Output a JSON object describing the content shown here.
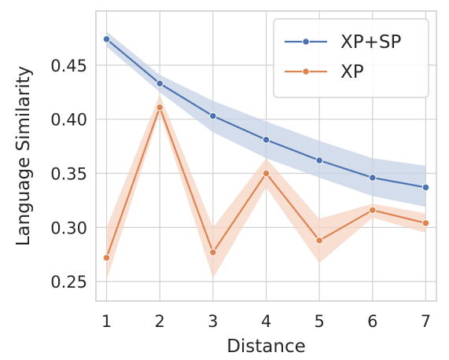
{
  "chart_data": {
    "type": "line",
    "xlabel": "Distance",
    "ylabel": "Language Similarity",
    "x": [
      1,
      2,
      3,
      4,
      5,
      6,
      7
    ],
    "xlim": [
      0.8,
      7.2
    ],
    "ylim": [
      0.232,
      0.5
    ],
    "xticks": [
      1,
      2,
      3,
      4,
      5,
      6,
      7
    ],
    "yticks": [
      0.25,
      0.3,
      0.35,
      0.4,
      0.45
    ],
    "ytick_labels": [
      "0.25",
      "0.30",
      "0.35",
      "0.40",
      "0.45"
    ],
    "grid": true,
    "legend_position": "top-right",
    "series": [
      {
        "name": "XP+SP",
        "color": "#4c72b0",
        "band_color": "#c5d1e6",
        "values": [
          0.474,
          0.433,
          0.403,
          0.381,
          0.362,
          0.346,
          0.337
        ],
        "ci_low": [
          0.467,
          0.425,
          0.388,
          0.364,
          0.346,
          0.329,
          0.319
        ],
        "ci_high": [
          0.481,
          0.441,
          0.417,
          0.398,
          0.38,
          0.364,
          0.357
        ]
      },
      {
        "name": "XP",
        "color": "#dd8452",
        "band_color": "#f6d4c1",
        "values": [
          0.272,
          0.411,
          0.277,
          0.35,
          0.288,
          0.316,
          0.304
        ],
        "ci_low": [
          0.251,
          0.406,
          0.253,
          0.337,
          0.267,
          0.309,
          0.295
        ],
        "ci_high": [
          0.3,
          0.423,
          0.3,
          0.364,
          0.308,
          0.322,
          0.313
        ]
      }
    ]
  }
}
